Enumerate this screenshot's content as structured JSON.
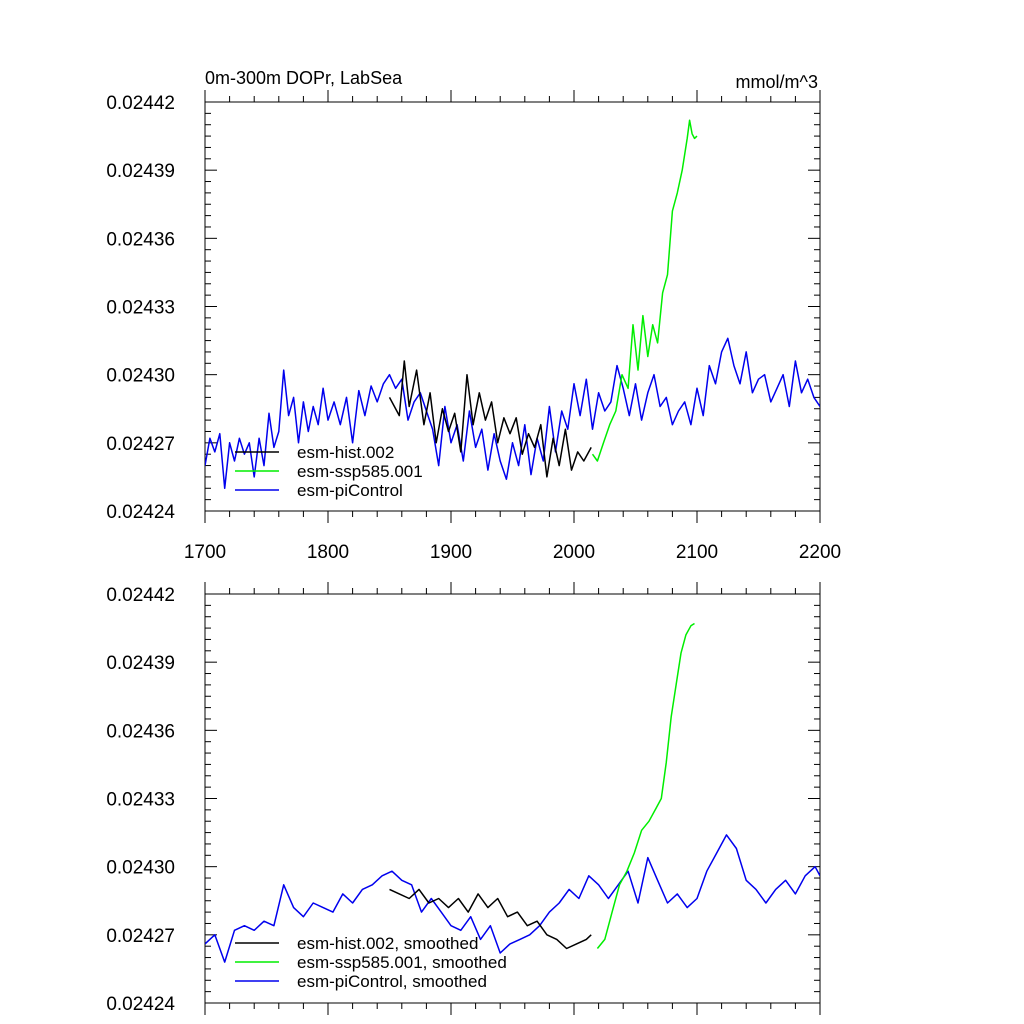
{
  "chart_data": [
    {
      "type": "line",
      "title": "0m-300m DOPr, LabSea",
      "units": "mmol/m^3",
      "xlim": [
        1700,
        2200
      ],
      "ylim": [
        0.02424,
        0.02442
      ],
      "xticks": [
        1700,
        1800,
        1900,
        2000,
        2100,
        2200
      ],
      "yticks": [
        "0.02424",
        "0.02427",
        "0.02430",
        "0.02433",
        "0.02436",
        "0.02439",
        "0.02442"
      ],
      "legend": "bottom-left",
      "series": [
        {
          "name": "esm-hist.002",
          "color": "#000000",
          "x": [
            1850,
            1858,
            1862,
            1866,
            1872,
            1878,
            1883,
            1888,
            1893,
            1898,
            1903,
            1908,
            1913,
            1918,
            1923,
            1928,
            1933,
            1938,
            1943,
            1948,
            1953,
            1958,
            1963,
            1968,
            1973,
            1978,
            1983,
            1988,
            1993,
            1998,
            2003,
            2008,
            2014
          ],
          "y": [
            0.02429,
            0.024282,
            0.024306,
            0.024286,
            0.024302,
            0.024278,
            0.024292,
            0.02427,
            0.024285,
            0.024275,
            0.024283,
            0.024266,
            0.0243,
            0.024278,
            0.024292,
            0.02428,
            0.024288,
            0.02427,
            0.024281,
            0.024274,
            0.024281,
            0.024265,
            0.024274,
            0.024268,
            0.024278,
            0.024255,
            0.024272,
            0.02426,
            0.024276,
            0.024258,
            0.024266,
            0.024262,
            0.024268
          ]
        },
        {
          "name": "esm-ssp585.001",
          "color": "#00ee00",
          "x": [
            2015,
            2019,
            2024,
            2029,
            2034,
            2039,
            2044,
            2048,
            2052,
            2056,
            2060,
            2064,
            2068,
            2072,
            2076,
            2080,
            2084,
            2088,
            2092,
            2094,
            2096,
            2098,
            2100
          ],
          "y": [
            0.024265,
            0.024262,
            0.02427,
            0.024278,
            0.024284,
            0.0243,
            0.024294,
            0.024322,
            0.024302,
            0.024326,
            0.024308,
            0.024322,
            0.024314,
            0.024336,
            0.024344,
            0.024372,
            0.02438,
            0.02439,
            0.024404,
            0.024412,
            0.024406,
            0.024404,
            0.024405
          ]
        },
        {
          "name": "esm-piControl",
          "color": "#0000ee",
          "x": [
            1700,
            1704,
            1708,
            1712,
            1716,
            1720,
            1724,
            1728,
            1732,
            1736,
            1740,
            1744,
            1748,
            1752,
            1756,
            1760,
            1764,
            1768,
            1772,
            1776,
            1780,
            1784,
            1788,
            1792,
            1796,
            1800,
            1805,
            1810,
            1815,
            1820,
            1825,
            1830,
            1835,
            1840,
            1845,
            1850,
            1855,
            1860,
            1865,
            1870,
            1875,
            1880,
            1885,
            1890,
            1895,
            1900,
            1905,
            1910,
            1915,
            1920,
            1925,
            1930,
            1935,
            1940,
            1945,
            1950,
            1955,
            1960,
            1965,
            1970,
            1975,
            1980,
            1985,
            1990,
            1995,
            2000,
            2005,
            2010,
            2015,
            2020,
            2025,
            2030,
            2035,
            2040,
            2045,
            2050,
            2055,
            2060,
            2065,
            2070,
            2075,
            2080,
            2085,
            2090,
            2095,
            2100,
            2105,
            2110,
            2115,
            2120,
            2125,
            2130,
            2135,
            2140,
            2145,
            2150,
            2155,
            2160,
            2165,
            2170,
            2175,
            2180,
            2185,
            2190,
            2195,
            2200
          ],
          "y": [
            0.02426,
            0.024272,
            0.024266,
            0.024274,
            0.02425,
            0.02427,
            0.024262,
            0.024272,
            0.024265,
            0.02427,
            0.024255,
            0.024272,
            0.02426,
            0.024283,
            0.024268,
            0.024275,
            0.024302,
            0.024282,
            0.02429,
            0.02427,
            0.024288,
            0.024275,
            0.024286,
            0.024278,
            0.024294,
            0.02428,
            0.024288,
            0.024278,
            0.02429,
            0.02427,
            0.024293,
            0.024282,
            0.024295,
            0.024288,
            0.024296,
            0.0243,
            0.024294,
            0.024298,
            0.02428,
            0.024288,
            0.024292,
            0.024284,
            0.024276,
            0.02426,
            0.024286,
            0.02427,
            0.024278,
            0.024262,
            0.024284,
            0.024268,
            0.024276,
            0.024258,
            0.024274,
            0.024262,
            0.024254,
            0.02427,
            0.02426,
            0.024278,
            0.024256,
            0.024272,
            0.024262,
            0.024286,
            0.024266,
            0.024284,
            0.024276,
            0.024296,
            0.024282,
            0.024298,
            0.024276,
            0.024292,
            0.024284,
            0.024288,
            0.024304,
            0.024294,
            0.024282,
            0.024296,
            0.02428,
            0.024292,
            0.0243,
            0.024286,
            0.02429,
            0.024278,
            0.024284,
            0.024288,
            0.024278,
            0.024294,
            0.024282,
            0.024304,
            0.024296,
            0.02431,
            0.024316,
            0.024304,
            0.024296,
            0.02431,
            0.024292,
            0.024298,
            0.0243,
            0.024288,
            0.024294,
            0.0243,
            0.024286,
            0.024306,
            0.024292,
            0.024298,
            0.02429,
            0.024286
          ]
        }
      ]
    },
    {
      "type": "line",
      "xlim": [
        1700,
        2200
      ],
      "ylim": [
        0.02424,
        0.02442
      ],
      "yticks": [
        "0.02424",
        "0.02427",
        "0.02430",
        "0.02433",
        "0.02436",
        "0.02439",
        "0.02442"
      ],
      "legend": "bottom-left",
      "series": [
        {
          "name": "esm-hist.002, smoothed",
          "color": "#000000",
          "x": [
            1850,
            1858,
            1866,
            1874,
            1882,
            1890,
            1898,
            1906,
            1914,
            1922,
            1930,
            1938,
            1946,
            1954,
            1962,
            1970,
            1978,
            1986,
            1994,
            2002,
            2010,
            2014
          ],
          "y": [
            0.02429,
            0.024288,
            0.024286,
            0.02429,
            0.024284,
            0.024286,
            0.024282,
            0.024286,
            0.02428,
            0.024288,
            0.024282,
            0.024286,
            0.024278,
            0.02428,
            0.024274,
            0.024276,
            0.02427,
            0.024268,
            0.024264,
            0.024266,
            0.024268,
            0.02427
          ]
        },
        {
          "name": "esm-ssp585.001, smoothed",
          "color": "#00ee00",
          "x": [
            2019,
            2025,
            2031,
            2037,
            2043,
            2049,
            2055,
            2061,
            2067,
            2071,
            2075,
            2079,
            2083,
            2087,
            2091,
            2095,
            2098
          ],
          "y": [
            0.024264,
            0.024268,
            0.02428,
            0.024292,
            0.024298,
            0.024306,
            0.024316,
            0.02432,
            0.024326,
            0.02433,
            0.024346,
            0.024366,
            0.02438,
            0.024394,
            0.024402,
            0.024406,
            0.024407
          ]
        },
        {
          "name": "esm-piControl, smoothed",
          "color": "#0000ee",
          "x": [
            1700,
            1708,
            1716,
            1724,
            1732,
            1740,
            1748,
            1756,
            1764,
            1772,
            1780,
            1788,
            1796,
            1804,
            1812,
            1820,
            1828,
            1836,
            1844,
            1852,
            1860,
            1868,
            1876,
            1884,
            1892,
            1900,
            1908,
            1916,
            1924,
            1932,
            1940,
            1948,
            1956,
            1964,
            1972,
            1980,
            1988,
            1996,
            2004,
            2012,
            2020,
            2028,
            2036,
            2044,
            2052,
            2060,
            2068,
            2076,
            2084,
            2092,
            2100,
            2108,
            2116,
            2124,
            2132,
            2140,
            2148,
            2156,
            2164,
            2172,
            2180,
            2188,
            2196,
            2200
          ],
          "y": [
            0.024266,
            0.02427,
            0.024258,
            0.024272,
            0.024274,
            0.024272,
            0.024276,
            0.024274,
            0.024292,
            0.024282,
            0.024278,
            0.024284,
            0.024282,
            0.02428,
            0.024288,
            0.024284,
            0.02429,
            0.024292,
            0.024296,
            0.024298,
            0.024294,
            0.024292,
            0.02428,
            0.024286,
            0.02428,
            0.024274,
            0.024272,
            0.024278,
            0.024268,
            0.024274,
            0.024262,
            0.024266,
            0.024268,
            0.02427,
            0.024274,
            0.02428,
            0.024284,
            0.02429,
            0.024286,
            0.024296,
            0.024292,
            0.024286,
            0.024292,
            0.024298,
            0.024284,
            0.024304,
            0.024294,
            0.024284,
            0.024288,
            0.024282,
            0.024286,
            0.024298,
            0.024306,
            0.024314,
            0.024308,
            0.024294,
            0.02429,
            0.024284,
            0.02429,
            0.024294,
            0.024288,
            0.024296,
            0.0243,
            0.024296
          ]
        }
      ]
    }
  ]
}
